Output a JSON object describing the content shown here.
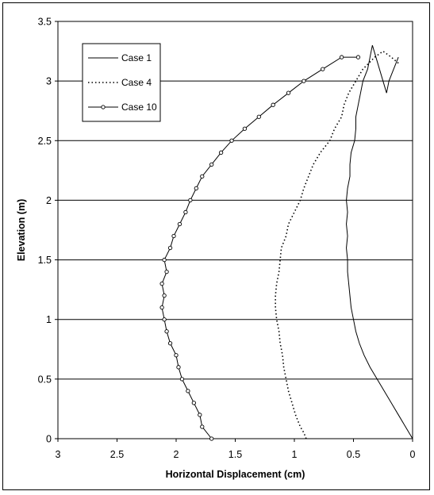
{
  "chart_data": {
    "type": "line",
    "xlabel": "Horizontal Displacement (cm)",
    "ylabel": "Elevation (m)",
    "xlim": [
      0,
      3
    ],
    "x_reversed": true,
    "ylim": [
      0,
      3.5
    ],
    "x_ticks": [
      3,
      2.5,
      2,
      1.5,
      1,
      0.5,
      0
    ],
    "x_tick_labels": [
      "3",
      "2.5",
      "2",
      "1.5",
      "1",
      "0.5",
      "0"
    ],
    "y_ticks": [
      0,
      0.5,
      1,
      1.5,
      2,
      2.5,
      3,
      3.5
    ],
    "y_tick_labels": [
      "0",
      "0.5",
      "1",
      "1.5",
      "2",
      "2.5",
      "3",
      "3.5"
    ],
    "grid": "horizontal major gridlines",
    "legend_placement": "top-left",
    "series": [
      {
        "name": "Case 1",
        "style": "solid",
        "marker": "none",
        "color": "#000000",
        "points": [
          [
            0.0,
            0.0
          ],
          [
            0.06,
            0.1
          ],
          [
            0.12,
            0.2
          ],
          [
            0.18,
            0.3
          ],
          [
            0.24,
            0.4
          ],
          [
            0.3,
            0.5
          ],
          [
            0.36,
            0.6
          ],
          [
            0.41,
            0.7
          ],
          [
            0.45,
            0.8
          ],
          [
            0.48,
            0.9
          ],
          [
            0.5,
            1.0
          ],
          [
            0.52,
            1.1
          ],
          [
            0.53,
            1.2
          ],
          [
            0.54,
            1.3
          ],
          [
            0.55,
            1.4
          ],
          [
            0.55,
            1.5
          ],
          [
            0.56,
            1.6
          ],
          [
            0.55,
            1.7
          ],
          [
            0.56,
            1.8
          ],
          [
            0.55,
            1.9
          ],
          [
            0.56,
            2.0
          ],
          [
            0.55,
            2.1
          ],
          [
            0.53,
            2.2
          ],
          [
            0.53,
            2.3
          ],
          [
            0.52,
            2.4
          ],
          [
            0.49,
            2.5
          ],
          [
            0.48,
            2.6
          ],
          [
            0.48,
            2.7
          ],
          [
            0.46,
            2.8
          ],
          [
            0.44,
            2.9
          ],
          [
            0.42,
            3.0
          ],
          [
            0.38,
            3.1
          ],
          [
            0.36,
            3.2
          ],
          [
            0.34,
            3.3
          ],
          [
            0.22,
            2.9
          ],
          [
            0.2,
            3.0
          ],
          [
            0.16,
            3.1
          ],
          [
            0.12,
            3.2
          ]
        ]
      },
      {
        "name": "Case 4",
        "style": "dotted",
        "marker": "none",
        "color": "#000000",
        "points": [
          [
            0.9,
            0.0
          ],
          [
            0.92,
            0.05
          ],
          [
            0.95,
            0.1
          ],
          [
            0.99,
            0.2
          ],
          [
            1.02,
            0.3
          ],
          [
            1.05,
            0.4
          ],
          [
            1.07,
            0.5
          ],
          [
            1.09,
            0.6
          ],
          [
            1.1,
            0.7
          ],
          [
            1.12,
            0.8
          ],
          [
            1.13,
            0.9
          ],
          [
            1.15,
            1.0
          ],
          [
            1.16,
            1.1
          ],
          [
            1.16,
            1.2
          ],
          [
            1.15,
            1.3
          ],
          [
            1.13,
            1.4
          ],
          [
            1.12,
            1.5
          ],
          [
            1.11,
            1.6
          ],
          [
            1.07,
            1.7
          ],
          [
            1.05,
            1.8
          ],
          [
            1.0,
            1.9
          ],
          [
            0.95,
            2.0
          ],
          [
            0.92,
            2.1
          ],
          [
            0.88,
            2.2
          ],
          [
            0.84,
            2.3
          ],
          [
            0.78,
            2.4
          ],
          [
            0.7,
            2.5
          ],
          [
            0.66,
            2.6
          ],
          [
            0.6,
            2.7
          ],
          [
            0.58,
            2.8
          ],
          [
            0.54,
            2.9
          ],
          [
            0.48,
            3.0
          ],
          [
            0.42,
            3.1
          ],
          [
            0.32,
            3.2
          ],
          [
            0.25,
            3.25
          ],
          [
            0.18,
            3.2
          ],
          [
            0.12,
            3.15
          ]
        ]
      },
      {
        "name": "Case 10",
        "style": "solid",
        "marker": "circle",
        "color": "#000000",
        "points": [
          [
            1.7,
            0.0
          ],
          [
            1.78,
            0.1
          ],
          [
            1.8,
            0.2
          ],
          [
            1.85,
            0.3
          ],
          [
            1.9,
            0.4
          ],
          [
            1.95,
            0.5
          ],
          [
            1.98,
            0.6
          ],
          [
            2.0,
            0.7
          ],
          [
            2.05,
            0.8
          ],
          [
            2.08,
            0.9
          ],
          [
            2.1,
            1.0
          ],
          [
            2.12,
            1.1
          ],
          [
            2.1,
            1.2
          ],
          [
            2.12,
            1.3
          ],
          [
            2.08,
            1.4
          ],
          [
            2.1,
            1.5
          ],
          [
            2.05,
            1.6
          ],
          [
            2.02,
            1.7
          ],
          [
            1.97,
            1.8
          ],
          [
            1.92,
            1.9
          ],
          [
            1.88,
            2.0
          ],
          [
            1.83,
            2.1
          ],
          [
            1.78,
            2.2
          ],
          [
            1.7,
            2.3
          ],
          [
            1.62,
            2.4
          ],
          [
            1.53,
            2.5
          ],
          [
            1.42,
            2.6
          ],
          [
            1.3,
            2.7
          ],
          [
            1.18,
            2.8
          ],
          [
            1.05,
            2.9
          ],
          [
            0.92,
            3.0
          ],
          [
            0.76,
            3.1
          ],
          [
            0.6,
            3.2
          ],
          [
            0.46,
            3.2
          ]
        ]
      }
    ]
  }
}
